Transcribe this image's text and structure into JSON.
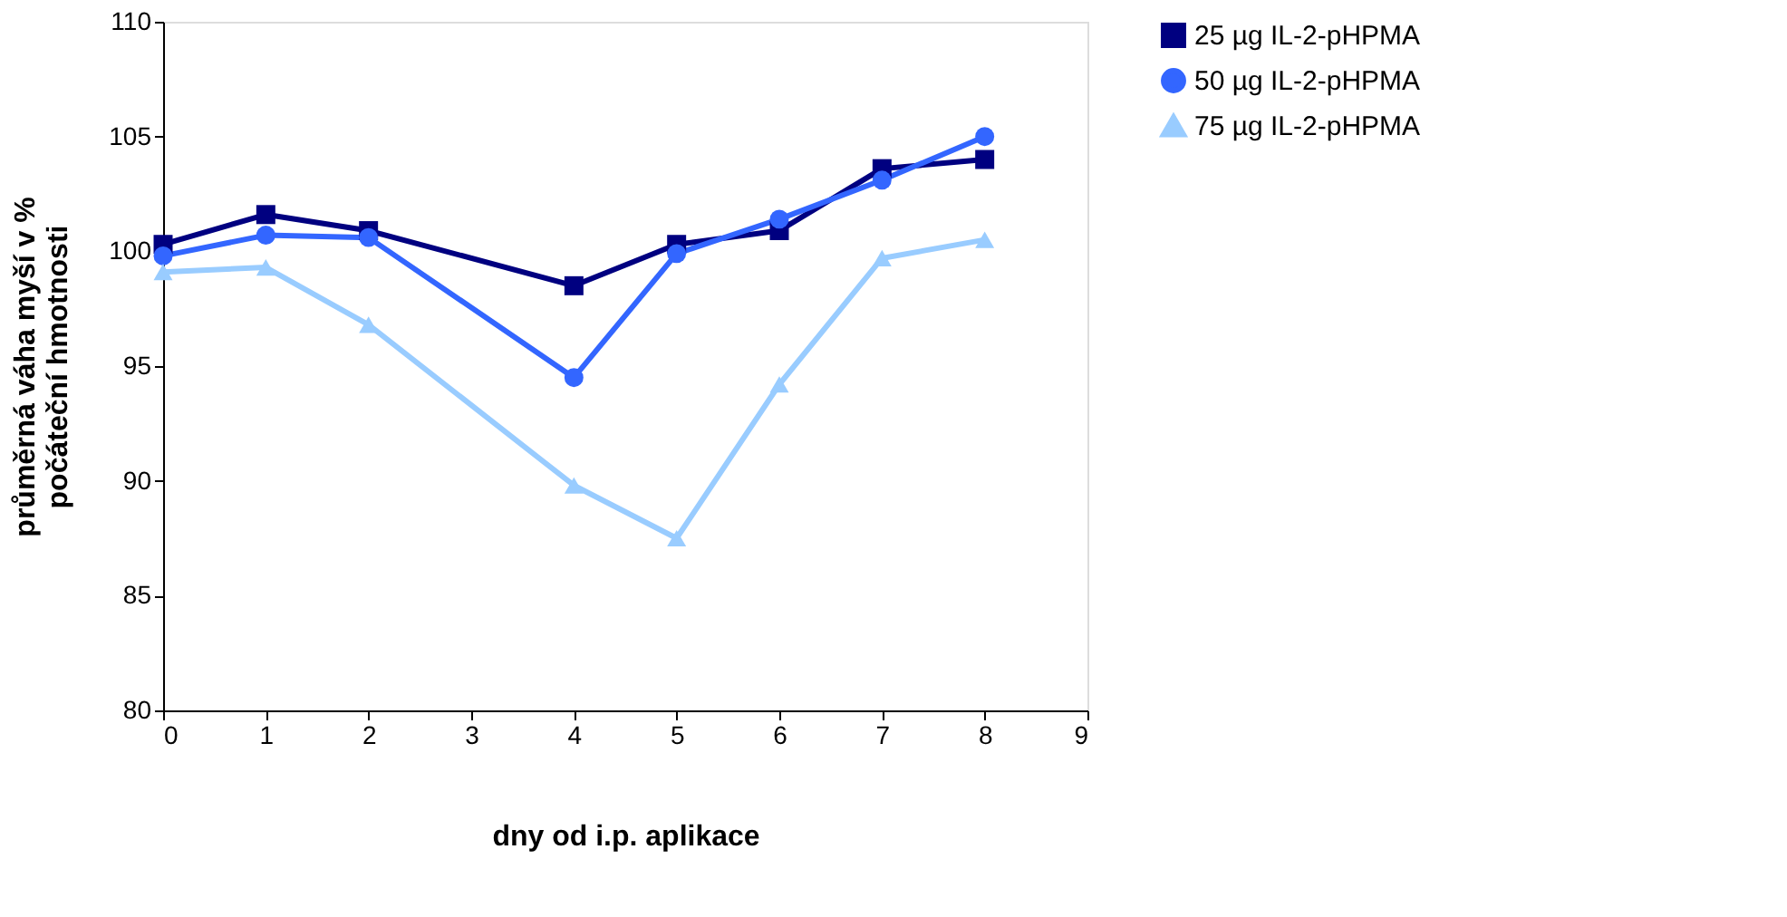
{
  "chart_data": {
    "type": "line",
    "xlabel": "dny od i.p. aplikace",
    "ylabel": "průměrná váha myší v % počáteční hmotnosti",
    "x": [
      0,
      1,
      2,
      4,
      5,
      6,
      7,
      8
    ],
    "series": [
      {
        "name": "25 µg IL-2-pHPMA",
        "color": "#000080",
        "marker": "square",
        "values": [
          100.3,
          101.6,
          100.9,
          98.5,
          100.3,
          100.9,
          103.6,
          104.0
        ]
      },
      {
        "name": "50 µg IL-2-pHPMA",
        "color": "#3366ff",
        "marker": "circle",
        "values": [
          99.8,
          100.7,
          100.6,
          94.5,
          99.9,
          101.4,
          103.1,
          105.0
        ]
      },
      {
        "name": "75 µg IL-2-pHPMA",
        "color": "#99ccff",
        "marker": "triangle",
        "values": [
          99.1,
          99.3,
          96.8,
          89.8,
          87.5,
          94.2,
          99.7,
          100.5
        ]
      }
    ],
    "xlim": [
      0,
      9
    ],
    "xticks": [
      0,
      1,
      2,
      3,
      4,
      5,
      6,
      7,
      8,
      9
    ],
    "ylim": [
      80,
      110
    ],
    "yticks": [
      80,
      85,
      90,
      95,
      100,
      105,
      110
    ],
    "grid": false,
    "legend": "right",
    "line_style": "solid"
  }
}
